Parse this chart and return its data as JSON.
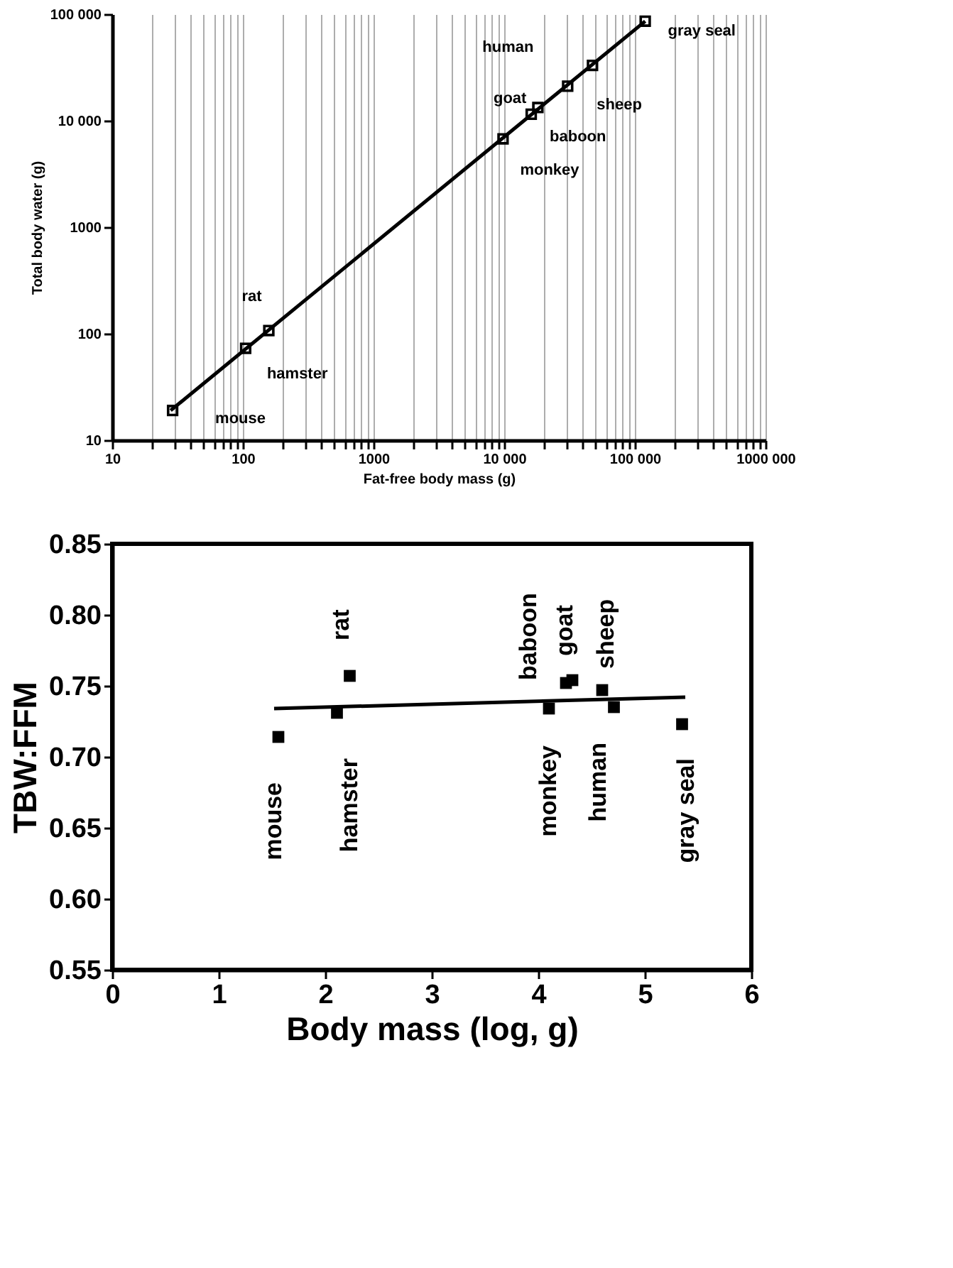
{
  "chart_data": [
    {
      "type": "scatter",
      "xlabel": "Fat-free body mass (g)",
      "ylabel": "Total body water (g)",
      "log": "xy",
      "grid": "x",
      "xlim": [
        10,
        1000000
      ],
      "xticks": [
        10,
        {
          "value": 20,
          "label": null
        },
        {
          "value": 30,
          "label": null
        },
        {
          "value": 40,
          "label": null
        },
        {
          "value": 50,
          "label": null
        },
        {
          "value": 60,
          "label": null
        },
        {
          "value": 70,
          "label": null
        },
        {
          "value": 80,
          "label": null
        },
        {
          "value": 90,
          "label": null
        },
        100,
        {
          "value": 200,
          "label": null
        },
        {
          "value": 300,
          "label": null
        },
        {
          "value": 400,
          "label": null
        },
        {
          "value": 500,
          "label": null
        },
        {
          "value": 600,
          "label": null
        },
        {
          "value": 700,
          "label": null
        },
        {
          "value": 800,
          "label": null
        },
        {
          "value": 900,
          "label": null
        },
        1000,
        {
          "value": 2000,
          "label": null
        },
        {
          "value": 3000,
          "label": null
        },
        {
          "value": 4000,
          "label": null
        },
        {
          "value": 5000,
          "label": null
        },
        {
          "value": 6000,
          "label": null
        },
        {
          "value": 7000,
          "label": null
        },
        {
          "value": 8000,
          "label": null
        },
        {
          "value": 9000,
          "label": null
        },
        {
          "value": 10000,
          "label": "10 000"
        },
        {
          "value": 20000,
          "label": null
        },
        {
          "value": 30000,
          "label": null
        },
        {
          "value": 40000,
          "label": null
        },
        {
          "value": 50000,
          "label": null
        },
        {
          "value": 60000,
          "label": null
        },
        {
          "value": 70000,
          "label": null
        },
        {
          "value": 80000,
          "label": null
        },
        {
          "value": 90000,
          "label": null
        },
        {
          "value": 100000,
          "label": "100 000"
        },
        {
          "value": 200000,
          "label": null
        },
        {
          "value": 300000,
          "label": null
        },
        {
          "value": 400000,
          "label": null
        },
        {
          "value": 500000,
          "label": null
        },
        {
          "value": 600000,
          "label": null
        },
        {
          "value": 700000,
          "label": null
        },
        {
          "value": 800000,
          "label": null
        },
        {
          "value": 900000,
          "label": null
        },
        {
          "value": 1000000,
          "label": "1000 000"
        }
      ],
      "ylim": [
        10,
        100000
      ],
      "yticks": [
        10,
        100,
        1000,
        {
          "value": 10000,
          "label": "10 000"
        },
        {
          "value": 100000,
          "label": "100 000"
        }
      ],
      "series": [
        {
          "color": "#000000",
          "marker": "square",
          "x": [
            29,
            105,
            158,
            9800,
            16100,
            18100,
            30600,
            47400,
            120000
          ],
          "values": [
            19,
            73,
            107,
            6760,
            11500,
            13300,
            21100,
            33100,
            86100
          ]
        },
        {
          "type": "line",
          "marker": "none",
          "line_style": "solid",
          "color": "#000000",
          "x": [
            28,
            120000
          ],
          "values": [
            19,
            86000
          ]
        }
      ],
      "annotations": [
        {
          "text": "mouse",
          "x": 29,
          "y": 19
        },
        {
          "text": "hamster",
          "x": 105,
          "y": 73
        },
        {
          "text": "rat",
          "x": 158,
          "y": 107
        },
        {
          "text": "monkey",
          "x": 9800,
          "y": 6760
        },
        {
          "text": "baboon",
          "x": 16100,
          "y": 11500
        },
        {
          "text": "goat",
          "x": 18100,
          "y": 13300
        },
        {
          "text": "human",
          "x": 30600,
          "y": 21100
        },
        {
          "text": "sheep",
          "x": 47400,
          "y": 33100
        },
        {
          "text": "gray seal",
          "x": 120000,
          "y": 86100
        }
      ]
    },
    {
      "type": "scatter",
      "xlabel": "Body mass (log, g)",
      "ylabel": "TBW:FFM",
      "grid": false,
      "xlim": [
        0,
        6
      ],
      "xticks": [
        0,
        1,
        2,
        3,
        4,
        5,
        6
      ],
      "ylim": [
        0.55,
        0.85
      ],
      "yticks": [
        0.55,
        {
          "value": 0.6,
          "label": "0.60"
        },
        0.65,
        {
          "value": 0.7,
          "label": "0.70"
        },
        0.75,
        {
          "value": 0.8,
          "label": "0.80"
        },
        0.85
      ],
      "series": [
        {
          "color": "#000000",
          "marker": "square",
          "x": [
            1.56,
            2.11,
            2.23,
            4.1,
            4.26,
            4.32,
            4.71,
            4.6,
            5.35
          ],
          "values": [
            0.714,
            0.731,
            0.757,
            0.734,
            0.752,
            0.754,
            0.735,
            0.747,
            0.723
          ]
        },
        {
          "type": "line",
          "marker": "none",
          "line_style": "solid",
          "color": "#000000",
          "x": [
            1.52,
            5.38
          ],
          "values": [
            0.734,
            0.742
          ]
        }
      ],
      "annotations": [
        {
          "text": "mouse",
          "x": 1.56,
          "y": 0.714
        },
        {
          "text": "hamster",
          "x": 2.11,
          "y": 0.731
        },
        {
          "text": "rat",
          "x": 2.23,
          "y": 0.757
        },
        {
          "text": "monkey",
          "x": 4.1,
          "y": 0.734
        },
        {
          "text": "baboon",
          "x": 4.26,
          "y": 0.752
        },
        {
          "text": "goat",
          "x": 4.32,
          "y": 0.754
        },
        {
          "text": "human",
          "x": 4.71,
          "y": 0.735
        },
        {
          "text": "sheep",
          "x": 4.6,
          "y": 0.747
        },
        {
          "text": "gray seal",
          "x": 5.35,
          "y": 0.723
        }
      ]
    }
  ]
}
